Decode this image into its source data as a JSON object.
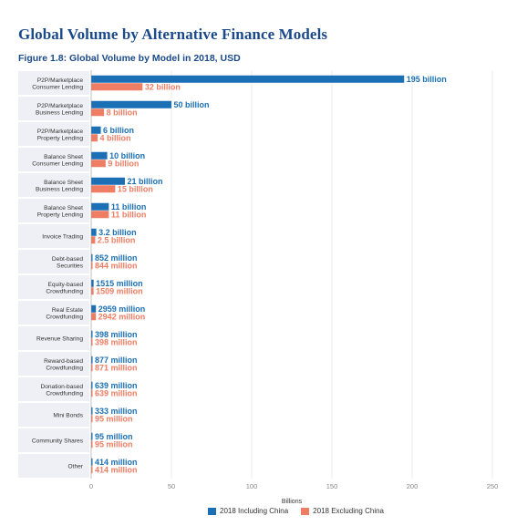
{
  "header": {
    "title": "Global Volume by Alternative Finance Models",
    "subtitle": "Figure 1.8: Global Volume by Model in 2018, USD"
  },
  "colors": {
    "series_including": "#1a6fb5",
    "series_excluding": "#ee7d63",
    "label_including": "#1a6fb5",
    "label_excluding": "#ee7d63",
    "category_band": "#eef0f5",
    "grid": "#dddddd"
  },
  "chart_data": {
    "type": "bar",
    "orientation": "horizontal",
    "categories": [
      [
        "P2P/Marketplace",
        "Consumer Lending"
      ],
      [
        "P2P/Marketplace",
        "Business Lending"
      ],
      [
        "P2P/Marketplace",
        "Property Lending"
      ],
      [
        "Balance Sheet",
        "Consumer Lending"
      ],
      [
        "Balance Sheet",
        "Business Lending"
      ],
      [
        "Balance Sheet",
        "Property Lending"
      ],
      [
        "Invoice Trading"
      ],
      [
        "Debt-based",
        "Securities"
      ],
      [
        "Equity-based",
        "Crowdfunding"
      ],
      [
        "Real Estate",
        "Crowdfunding"
      ],
      [
        "Revenue Sharing"
      ],
      [
        "Reward-based",
        "Crowdfunding"
      ],
      [
        "Donation-based",
        "Crowdfunding"
      ],
      [
        "Mini Bonds"
      ],
      [
        "Community Shares"
      ],
      [
        "Other"
      ]
    ],
    "series": [
      {
        "name": "2018 Including China",
        "values": [
          195,
          50,
          6,
          10,
          21,
          11,
          3.2,
          0.852,
          1.515,
          2.959,
          0.398,
          0.877,
          0.639,
          0.333,
          0.095,
          0.414
        ],
        "labels": [
          "195 billion",
          "50 billion",
          "6 billion",
          "10 billion",
          "21 billion",
          "11 billion",
          "3.2 billion",
          "852 million",
          "1515 million",
          "2959 million",
          "398 million",
          "877 million",
          "639 million",
          "333 million",
          "95 million",
          "414 million"
        ]
      },
      {
        "name": "2018 Excluding China",
        "values": [
          32,
          8,
          4,
          9,
          15,
          11,
          2.5,
          0.844,
          1.509,
          2.942,
          0.398,
          0.871,
          0.639,
          0.095,
          0.095,
          0.414
        ],
        "labels": [
          "32 billion",
          "8 billion",
          "4 billion",
          "9 billion",
          "15 billion",
          "11 billion",
          "2.5 billion",
          "844 million",
          "1509 million",
          "2942 million",
          "398 million",
          "871 million",
          "639 million",
          "95 million",
          "95 million",
          "414 million"
        ]
      }
    ],
    "xlabel": "Billions",
    "ylabel": "",
    "xlim": [
      0,
      250
    ],
    "xticks": [
      0,
      50,
      100,
      150,
      200,
      250
    ],
    "grid": true,
    "legend_position": "bottom"
  }
}
